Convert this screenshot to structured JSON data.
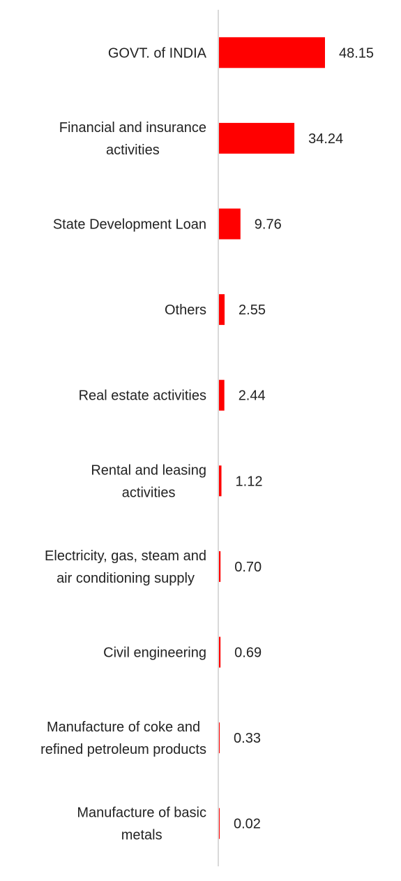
{
  "chart_data": {
    "type": "bar",
    "orientation": "horizontal",
    "categories": [
      [
        "GOVT. of INDIA"
      ],
      [
        "Financial and insurance",
        "activities"
      ],
      [
        "State Development Loan"
      ],
      [
        "Others"
      ],
      [
        "Real estate activities"
      ],
      [
        "Rental and leasing",
        "activities"
      ],
      [
        "Electricity, gas, steam and",
        "air conditioning supply"
      ],
      [
        "Civil engineering"
      ],
      [
        "Manufacture of coke and",
        "refined petroleum products"
      ],
      [
        "Manufacture of basic",
        "metals"
      ]
    ],
    "values": [
      48.15,
      34.24,
      9.76,
      2.55,
      2.44,
      1.12,
      0.7,
      0.69,
      0.33,
      0.02
    ],
    "value_labels": [
      "48.15",
      "34.24",
      "9.76",
      "2.55",
      "2.44",
      "1.12",
      "0.70",
      "0.69",
      "0.33",
      "0.02"
    ],
    "bar_color": "#ff0000",
    "axis_color": "#d9d9d9",
    "grid": false,
    "legend": "none"
  }
}
